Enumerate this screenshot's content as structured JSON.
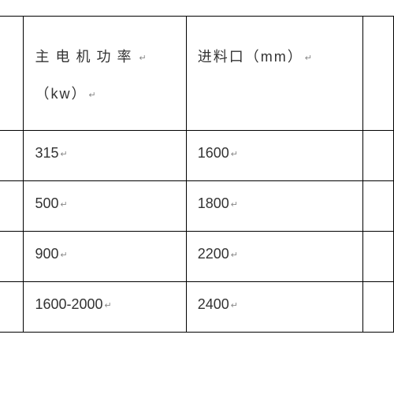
{
  "table": {
    "columns": [
      {
        "label_line1": "主电机功率",
        "label_line2": "（kw）"
      },
      {
        "label_line1": "进料口（mm）",
        "label_line2": ""
      }
    ],
    "rows": [
      {
        "power": "315",
        "inlet": "1600"
      },
      {
        "power": "500",
        "inlet": "1800"
      },
      {
        "power": "900",
        "inlet": "2200"
      },
      {
        "power": "1600-2000",
        "inlet": "2400"
      }
    ],
    "return_glyph": "↵",
    "colors": {
      "border": "#000000",
      "text": "#333333",
      "mark": "#888888",
      "background": "#ffffff"
    },
    "font_size_pt": 18
  }
}
